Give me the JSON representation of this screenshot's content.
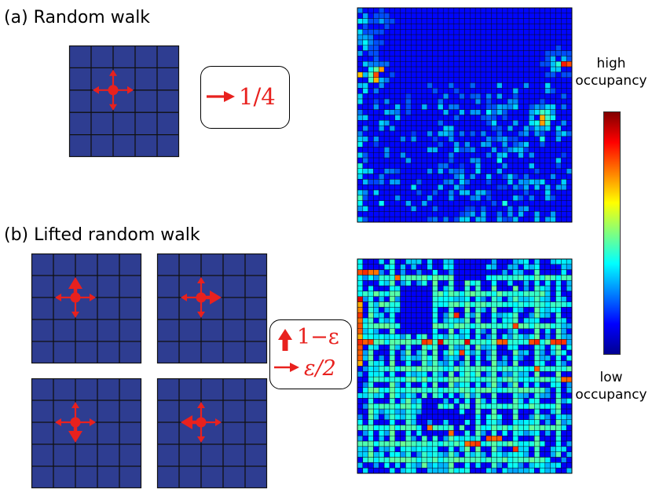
{
  "panel_a": {
    "title": "(a) Random walk",
    "rule": "1/4"
  },
  "panel_b": {
    "title": "(b) Lifted random walk",
    "rule_forward": "1−ε",
    "rule_side": "ε/2"
  },
  "colorbar": {
    "high_label_1": "high",
    "high_label_2": "occupancy",
    "low_label_1": "low",
    "low_label_2": "occupancy"
  },
  "colors": {
    "lattice": "#2e3d91",
    "arrow": "#e8211e"
  },
  "icons": {
    "arrow": "right-arrow-icon",
    "up_arrow": "up-arrow-icon"
  },
  "heatmaps": {
    "rows": 40,
    "cols": 40
  }
}
